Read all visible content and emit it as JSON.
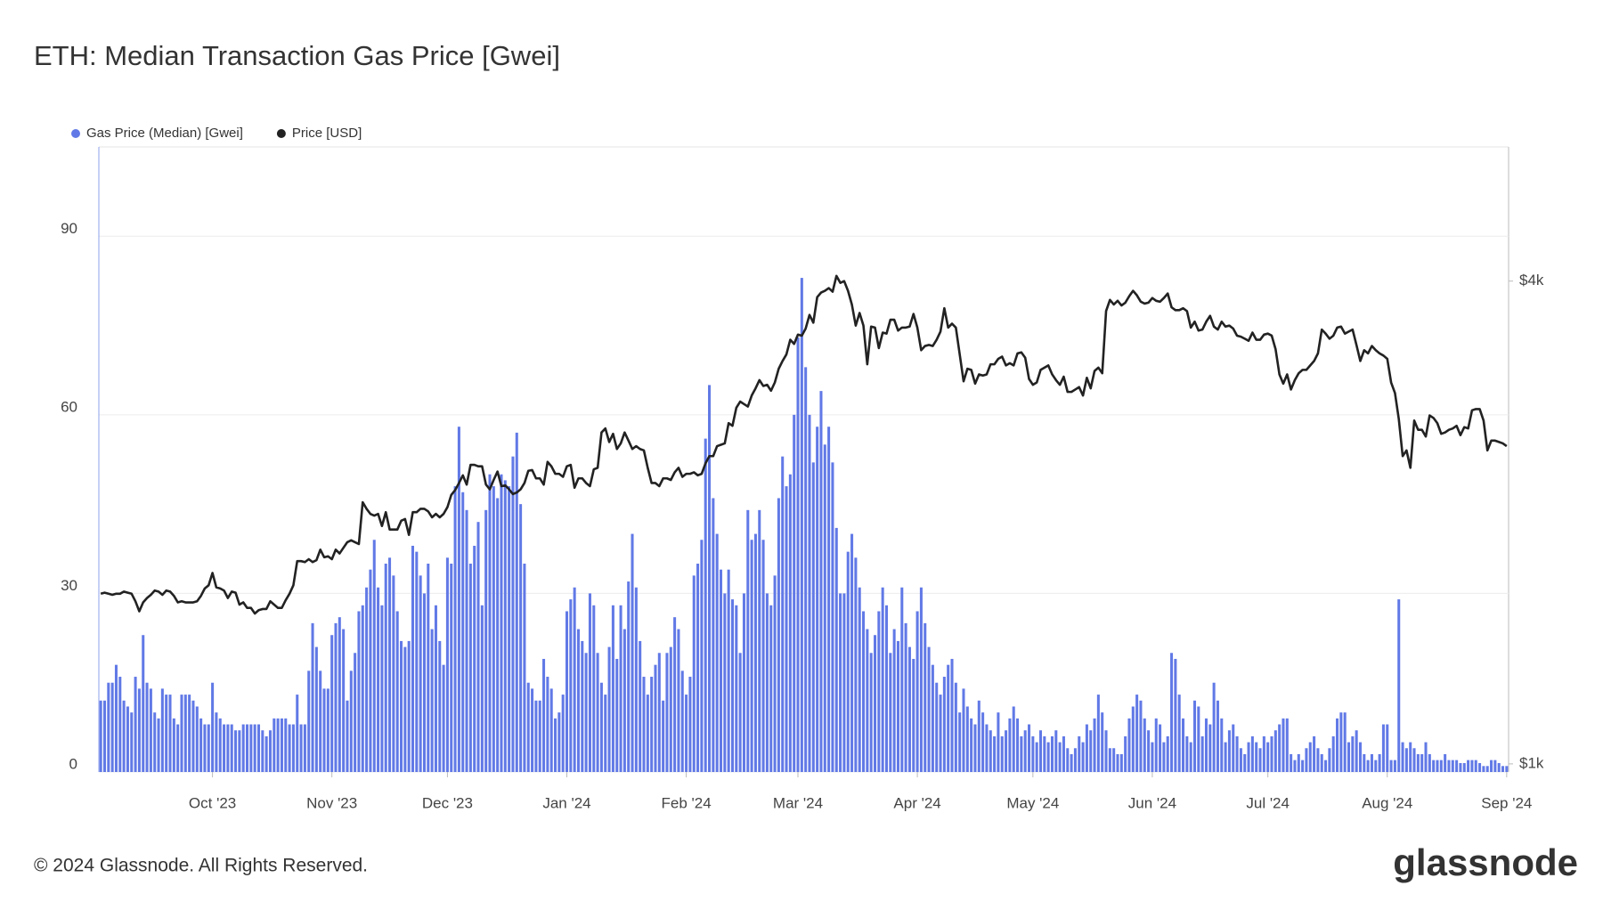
{
  "chart_data": {
    "type": "bar_line",
    "title": "ETH: Median Transaction Gas Price [Gwei]",
    "categories": [
      null,
      null,
      null,
      null,
      null,
      null,
      null,
      null,
      null,
      null,
      null,
      null,
      null,
      null,
      null,
      null,
      null,
      null,
      null,
      null,
      null,
      null,
      null,
      null,
      null,
      null,
      null,
      null,
      null,
      "Oct '23",
      null,
      null,
      null,
      null,
      null,
      null,
      null,
      null,
      null,
      null,
      null,
      null,
      null,
      null,
      null,
      null,
      null,
      null,
      null,
      null,
      null,
      null,
      null,
      null,
      null,
      null,
      null,
      null,
      null,
      null,
      "Nov '23",
      null,
      null,
      null,
      null,
      null,
      null,
      null,
      null,
      null,
      null,
      null,
      null,
      null,
      null,
      null,
      null,
      null,
      null,
      null,
      null,
      null,
      null,
      null,
      null,
      null,
      null,
      null,
      null,
      null,
      "Dec '23",
      null,
      null,
      null,
      null,
      null,
      null,
      null,
      null,
      null,
      null,
      null,
      null,
      null,
      null,
      null,
      null,
      null,
      null,
      null,
      null,
      null,
      null,
      null,
      null,
      null,
      null,
      null,
      null,
      null,
      null,
      "Jan '24",
      null,
      null,
      null,
      null,
      null,
      null,
      null,
      null,
      null,
      null,
      null,
      null,
      null,
      null,
      null,
      null,
      null,
      null,
      null,
      null,
      null,
      null,
      null,
      null,
      null,
      null,
      null,
      null,
      null,
      null,
      "Feb '24",
      null,
      null,
      null,
      null,
      null,
      null,
      null,
      null,
      null,
      null,
      null,
      null,
      null,
      null,
      null,
      null,
      null,
      null,
      null,
      null,
      null,
      null,
      null,
      null,
      null,
      null,
      null,
      null,
      "Mar '24",
      null,
      null,
      null,
      null,
      null,
      null,
      null,
      null,
      null,
      null,
      null,
      null,
      null,
      null,
      null,
      null,
      null,
      null,
      null,
      null,
      null,
      null,
      null,
      null,
      null,
      null,
      null,
      null,
      null,
      null,
      "Apr '24",
      null,
      null,
      null,
      null,
      null,
      null,
      null,
      null,
      null,
      null,
      null,
      null,
      null,
      null,
      null,
      null,
      null,
      null,
      null,
      null,
      null,
      null,
      null,
      null,
      null,
      null,
      null,
      null,
      null,
      "May '24",
      null,
      null,
      null,
      null,
      null,
      null,
      null,
      null,
      null,
      null,
      null,
      null,
      null,
      null,
      null,
      null,
      null,
      null,
      null,
      null,
      null,
      null,
      null,
      null,
      null,
      null,
      null,
      null,
      null,
      null,
      "Jun '24",
      null,
      null,
      null,
      null,
      null,
      null,
      null,
      null,
      null,
      null,
      null,
      null,
      null,
      null,
      null,
      null,
      null,
      null,
      null,
      null,
      null,
      null,
      null,
      null,
      null,
      null,
      null,
      null,
      null,
      "Jul '24",
      null,
      null,
      null,
      null,
      null,
      null,
      null,
      null,
      null,
      null,
      null,
      null,
      null,
      null,
      null,
      null,
      null,
      null,
      null,
      null,
      null,
      null,
      null,
      null,
      null,
      null,
      null,
      null,
      null,
      null,
      "Aug '24",
      null,
      null,
      null,
      null,
      null,
      null,
      null,
      null,
      null,
      null,
      null,
      null,
      null,
      null,
      null,
      null,
      null,
      null,
      null,
      null,
      null,
      null,
      null,
      null,
      null,
      null,
      null,
      null,
      null,
      null,
      "Sep '24"
    ],
    "series": [
      {
        "name": "Gas Price (Median) [Gwei]",
        "color": "#6179e6",
        "type": "bar",
        "values": [
          12,
          12,
          15,
          15,
          18,
          16,
          12,
          11,
          10,
          16,
          14,
          23,
          15,
          14,
          10,
          9,
          14,
          13,
          13,
          9,
          8,
          13,
          13,
          13,
          12,
          11,
          9,
          8,
          8,
          15,
          10,
          9,
          8,
          8,
          8,
          7,
          7,
          8,
          8,
          8,
          8,
          8,
          7,
          6,
          7,
          9,
          9,
          9,
          9,
          8,
          8,
          13,
          8,
          8,
          17,
          25,
          21,
          17,
          14,
          14,
          23,
          25,
          26,
          24,
          12,
          17,
          20,
          27,
          28,
          31,
          34,
          39,
          31,
          28,
          35,
          36,
          33,
          27,
          22,
          21,
          22,
          38,
          37,
          33,
          30,
          35,
          24,
          28,
          22,
          18,
          36,
          35,
          48,
          58,
          47,
          44,
          35,
          38,
          42,
          28,
          44,
          50,
          48,
          46,
          50,
          49,
          48,
          53,
          57,
          45,
          35,
          15,
          14,
          12,
          12,
          19,
          16,
          14,
          9,
          10,
          13,
          27,
          29,
          31,
          24,
          22,
          20,
          30,
          28,
          20,
          15,
          13,
          21,
          28,
          19,
          28,
          24,
          32,
          40,
          31,
          22,
          16,
          13,
          16,
          18,
          20,
          12,
          20,
          21,
          26,
          24,
          17,
          13,
          16,
          33,
          35,
          39,
          56,
          65,
          46,
          40,
          34,
          30,
          34,
          29,
          28,
          20,
          30,
          44,
          39,
          40,
          44,
          39,
          30,
          28,
          33,
          46,
          53,
          48,
          50,
          60,
          73,
          83,
          68,
          60,
          52,
          58,
          64,
          55,
          58,
          52,
          41,
          30,
          30,
          37,
          40,
          36,
          31,
          27,
          24,
          20,
          23,
          27,
          31,
          28,
          20,
          24,
          22,
          31,
          25,
          21,
          19,
          27,
          31,
          25,
          21,
          18,
          15,
          13,
          16,
          18,
          19,
          15,
          10,
          14,
          11,
          9,
          8,
          12,
          10,
          8,
          7,
          6,
          10,
          6,
          7,
          9,
          11,
          9,
          6,
          7,
          8,
          6,
          5,
          7,
          6,
          5,
          6,
          7,
          5,
          6,
          4,
          3,
          4,
          6,
          5,
          8,
          7,
          9,
          13,
          10,
          7,
          4,
          4,
          3,
          3,
          6,
          9,
          11,
          13,
          12,
          9,
          7,
          5,
          9,
          8,
          5,
          6,
          20,
          19,
          13,
          9,
          6,
          5,
          12,
          11,
          6,
          9,
          8,
          15,
          12,
          9,
          5,
          7,
          8,
          6,
          4,
          3,
          5,
          6,
          5,
          4,
          6,
          5,
          6,
          7,
          8,
          9,
          9,
          3,
          2,
          3,
          2,
          4,
          5,
          6,
          4,
          3,
          2,
          4,
          6,
          9,
          10,
          10,
          5,
          6,
          7,
          5,
          3,
          2,
          3,
          2,
          3,
          8,
          8,
          2,
          2,
          29,
          5,
          4,
          5,
          4,
          3,
          3,
          5,
          3,
          2,
          2,
          2,
          3,
          2,
          2,
          2,
          1.5,
          1.5,
          2,
          2,
          2,
          1.5,
          1,
          1,
          2,
          2,
          1.5,
          1,
          1
        ]
      },
      {
        "name": "Price [USD]",
        "color": "#222222",
        "type": "line",
        "axis": "y2",
        "values": [
          1630,
          1635,
          1630,
          1625,
          1630,
          1630,
          1640,
          1635,
          1630,
          1595,
          1550,
          1590,
          1610,
          1625,
          1645,
          1640,
          1625,
          1645,
          1640,
          1620,
          1590,
          1595,
          1590,
          1590,
          1590,
          1595,
          1620,
          1655,
          1670,
          1730,
          1660,
          1655,
          1645,
          1610,
          1640,
          1635,
          1580,
          1590,
          1565,
          1565,
          1540,
          1555,
          1560,
          1560,
          1595,
          1580,
          1565,
          1565,
          1600,
          1630,
          1670,
          1790,
          1790,
          1785,
          1800,
          1785,
          1795,
          1850,
          1810,
          1815,
          1800,
          1850,
          1830,
          1860,
          1890,
          1900,
          1890,
          1880,
          2120,
          2080,
          2050,
          2040,
          2050,
          1980,
          2060,
          1960,
          1960,
          1960,
          2010,
          2020,
          1930,
          2060,
          2060,
          2080,
          2080,
          2065,
          2030,
          2050,
          2030,
          2050,
          2090,
          2165,
          2195,
          2240,
          2290,
          2230,
          2360,
          2360,
          2350,
          2350,
          2230,
          2200,
          2260,
          2315,
          2220,
          2225,
          2200,
          2170,
          2180,
          2200,
          2240,
          2320,
          2325,
          2270,
          2270,
          2230,
          2380,
          2350,
          2300,
          2300,
          2280,
          2350,
          2360,
          2210,
          2270,
          2270,
          2240,
          2220,
          2330,
          2340,
          2590,
          2620,
          2520,
          2580,
          2470,
          2510,
          2590,
          2530,
          2470,
          2490,
          2470,
          2460,
          2340,
          2240,
          2240,
          2220,
          2270,
          2270,
          2260,
          2310,
          2340,
          2280,
          2300,
          2300,
          2310,
          2290,
          2300,
          2370,
          2420,
          2420,
          2490,
          2500,
          2510,
          2660,
          2640,
          2780,
          2830,
          2810,
          2790,
          2880,
          2940,
          3010,
          2960,
          2970,
          2920,
          2990,
          3110,
          3180,
          3240,
          3380,
          3340,
          3430,
          3420,
          3490,
          3630,
          3550,
          3820,
          3870,
          3890,
          3920,
          3880,
          4060,
          3980,
          4000,
          3890,
          3740,
          3520,
          3650,
          3520,
          3150,
          3510,
          3500,
          3300,
          3450,
          3440,
          3580,
          3580,
          3470,
          3500,
          3500,
          3510,
          3640,
          3500,
          3280,
          3320,
          3330,
          3320,
          3380,
          3460,
          3700,
          3500,
          3540,
          3500,
          3240,
          3000,
          3110,
          3100,
          2980,
          3060,
          3050,
          3060,
          3150,
          3150,
          3200,
          3220,
          3140,
          3160,
          3140,
          3250,
          3260,
          3210,
          3020,
          2970,
          2990,
          3100,
          3120,
          3140,
          3060,
          3010,
          2970,
          3040,
          2910,
          2910,
          2930,
          2950,
          2880,
          3030,
          2940,
          3090,
          3120,
          3070,
          3670,
          3790,
          3740,
          3780,
          3730,
          3760,
          3830,
          3890,
          3840,
          3770,
          3750,
          3760,
          3810,
          3780,
          3770,
          3810,
          3860,
          3710,
          3680,
          3680,
          3700,
          3670,
          3500,
          3560,
          3470,
          3480,
          3560,
          3620,
          3510,
          3480,
          3560,
          3510,
          3520,
          3490,
          3420,
          3410,
          3390,
          3370,
          3450,
          3380,
          3380,
          3430,
          3440,
          3420,
          3290,
          3060,
          2980,
          3060,
          2930,
          3010,
          3070,
          3100,
          3100,
          3140,
          3180,
          3250,
          3480,
          3440,
          3390,
          3420,
          3500,
          3510,
          3440,
          3460,
          3480,
          3330,
          3180,
          3280,
          3250,
          3320,
          3280,
          3250,
          3230,
          3200,
          2990,
          2900,
          2690,
          2420,
          2460,
          2340,
          2680,
          2610,
          2610,
          2560,
          2720,
          2700,
          2660,
          2580,
          2590,
          2610,
          2620,
          2640,
          2570,
          2630,
          2620,
          2760,
          2770,
          2770,
          2680,
          2460,
          2530,
          2530,
          2520,
          2510,
          2490
        ]
      }
    ],
    "ylim": [
      0,
      105
    ],
    "yticks": [
      0,
      30,
      60,
      90
    ],
    "y2lim": [
      977,
      5880
    ],
    "y2log": true,
    "y2ticks": [
      {
        "value": 1000,
        "label": "$1k"
      },
      {
        "value": 4000,
        "label": "$4k"
      }
    ],
    "grid": true,
    "legend": "top-left"
  },
  "footer": {
    "copyright": "© 2024 Glassnode. All Rights Reserved.",
    "brand": "glassnode"
  }
}
